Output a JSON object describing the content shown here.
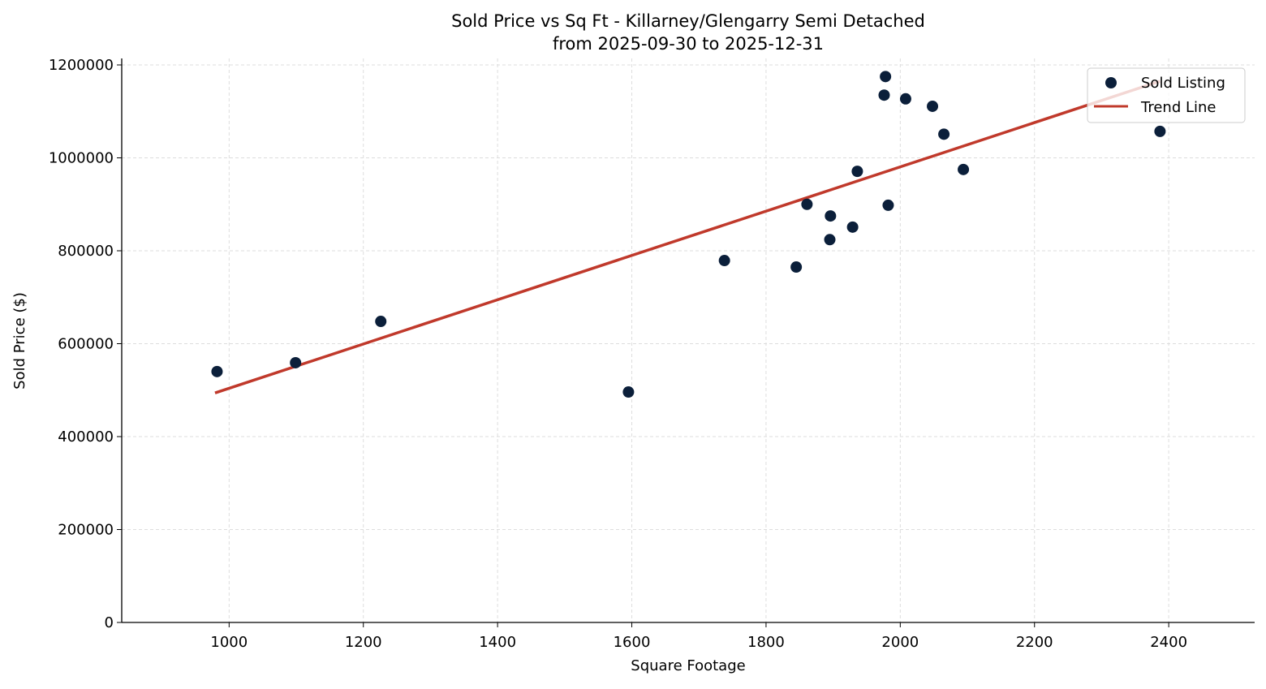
{
  "chart_data": {
    "type": "scatter",
    "title": "Sold Price vs Sq Ft - Killarney/Glengarry Semi Detached",
    "subtitle": "from 2025-09-30 to 2025-12-31",
    "xlabel": "Square Footage",
    "ylabel": "Sold Price ($)",
    "xlim": [
      840,
      2528
    ],
    "ylim": [
      0,
      1214000
    ],
    "xticks": [
      1000,
      1200,
      1400,
      1600,
      1800,
      2000,
      2200,
      2400
    ],
    "yticks": [
      0,
      200000,
      400000,
      600000,
      800000,
      1000000,
      1200000
    ],
    "grid": true,
    "legend_placement": "top-right",
    "series": [
      {
        "name": "Sold Listing",
        "type": "scatter",
        "color": "#0b1f3a",
        "points": [
          [
            982,
            540000
          ],
          [
            1099,
            559000
          ],
          [
            1226,
            648000
          ],
          [
            1595,
            496000
          ],
          [
            1738,
            779000
          ],
          [
            1845,
            765000
          ],
          [
            1861,
            900000
          ],
          [
            1895,
            824000
          ],
          [
            1896,
            875000
          ],
          [
            1929,
            851000
          ],
          [
            1936,
            971000
          ],
          [
            1976,
            1135000
          ],
          [
            1978,
            1175000
          ],
          [
            1982,
            898000
          ],
          [
            2008,
            1127000
          ],
          [
            2048,
            1111000
          ],
          [
            2065,
            1051000
          ],
          [
            2094,
            975000
          ],
          [
            2387,
            1057000
          ]
        ]
      },
      {
        "name": "Trend Line",
        "type": "line",
        "color": "#c0392b",
        "points": [
          [
            979,
            494000
          ],
          [
            2387,
            1165000
          ]
        ]
      }
    ]
  }
}
